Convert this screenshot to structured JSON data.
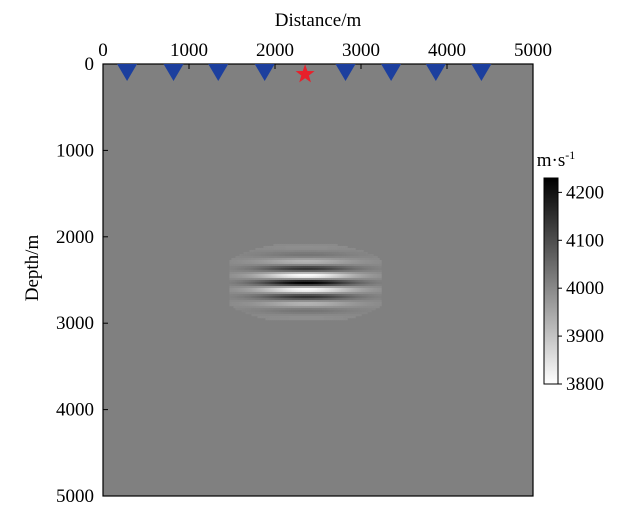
{
  "chart_data": {
    "type": "heatmap",
    "title": "",
    "xlabel": "Distance/m",
    "ylabel": "Depth/m",
    "xlim": [
      0,
      5000
    ],
    "ylim": [
      0,
      5000
    ],
    "x_ticks": [
      0,
      1000,
      2000,
      3000,
      4000,
      5000
    ],
    "y_ticks": [
      0,
      1000,
      2000,
      3000,
      4000,
      5000
    ],
    "x_axis_position": "top",
    "y_axis_inverted": true,
    "background_value": 4000,
    "anomaly": {
      "center_x": 2350,
      "center_y": 2520,
      "half_width_x": 800,
      "half_height_y": 350,
      "peak_value": 4230,
      "trough_value": 3800,
      "note_pattern": "horizontal banded oscillation"
    },
    "receivers": {
      "marker": "inverted-triangle",
      "color": "#1c3f9e",
      "x": [
        280,
        820,
        1340,
        1880,
        2820,
        3350,
        3870,
        4400
      ],
      "y": 100
    },
    "source": {
      "marker": "star",
      "color": "#e8202a",
      "x": 2350,
      "y": 130
    },
    "colorbar": {
      "unit": "m·s",
      "unit_exponent": "-1",
      "min": 3800,
      "max": 4230,
      "ticks": [
        3800,
        3900,
        4000,
        4100,
        4200
      ],
      "colormap": "gray-reversed"
    },
    "grid": false
  }
}
